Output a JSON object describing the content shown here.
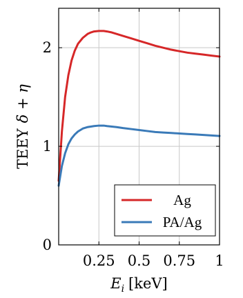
{
  "chart_data": {
    "type": "line",
    "xlabel_main": "E",
    "xlabel_sub": "i",
    "xlabel_unit": "[keV]",
    "ylabel_text": "TEEY",
    "ylabel_math": "δ + η",
    "xlim": [
      0,
      1
    ],
    "ylim": [
      0,
      2.4
    ],
    "xticks": [
      0.25,
      0.5,
      0.75,
      1
    ],
    "xtick_labels": [
      "0.25",
      "0.5",
      "0.75",
      "1"
    ],
    "yticks": [
      0,
      1,
      2
    ],
    "ytick_labels": [
      "0",
      "1",
      "2"
    ],
    "grid": true,
    "legend_position": "bottom-right",
    "series": [
      {
        "name": "Ag",
        "color": "#d62728",
        "x": [
          0,
          0.02,
          0.04,
          0.06,
          0.08,
          0.1,
          0.12,
          0.15,
          0.18,
          0.2,
          0.22,
          0.25,
          0.28,
          0.3,
          0.33,
          0.36,
          0.4,
          0.45,
          0.5,
          0.55,
          0.6,
          0.65,
          0.7,
          0.75,
          0.8,
          0.85,
          0.9,
          0.95,
          1.0
        ],
        "y": [
          0.65,
          1.15,
          1.5,
          1.72,
          1.87,
          1.97,
          2.04,
          2.1,
          2.14,
          2.155,
          2.165,
          2.17,
          2.17,
          2.165,
          2.155,
          2.14,
          2.12,
          2.095,
          2.07,
          2.045,
          2.02,
          2.0,
          1.98,
          1.965,
          1.95,
          1.94,
          1.93,
          1.92,
          1.91
        ]
      },
      {
        "name": "PA/Ag",
        "color": "#3a7ab8",
        "x": [
          0,
          0.02,
          0.04,
          0.06,
          0.08,
          0.1,
          0.12,
          0.15,
          0.18,
          0.2,
          0.22,
          0.25,
          0.28,
          0.3,
          0.33,
          0.36,
          0.4,
          0.45,
          0.5,
          0.55,
          0.6,
          0.65,
          0.7,
          0.75,
          0.8,
          0.85,
          0.9,
          0.95,
          1.0
        ],
        "y": [
          0.6,
          0.8,
          0.93,
          1.02,
          1.08,
          1.12,
          1.15,
          1.18,
          1.195,
          1.2,
          1.205,
          1.21,
          1.21,
          1.205,
          1.2,
          1.195,
          1.185,
          1.175,
          1.165,
          1.155,
          1.145,
          1.14,
          1.135,
          1.13,
          1.125,
          1.12,
          1.115,
          1.11,
          1.105
        ]
      }
    ]
  }
}
